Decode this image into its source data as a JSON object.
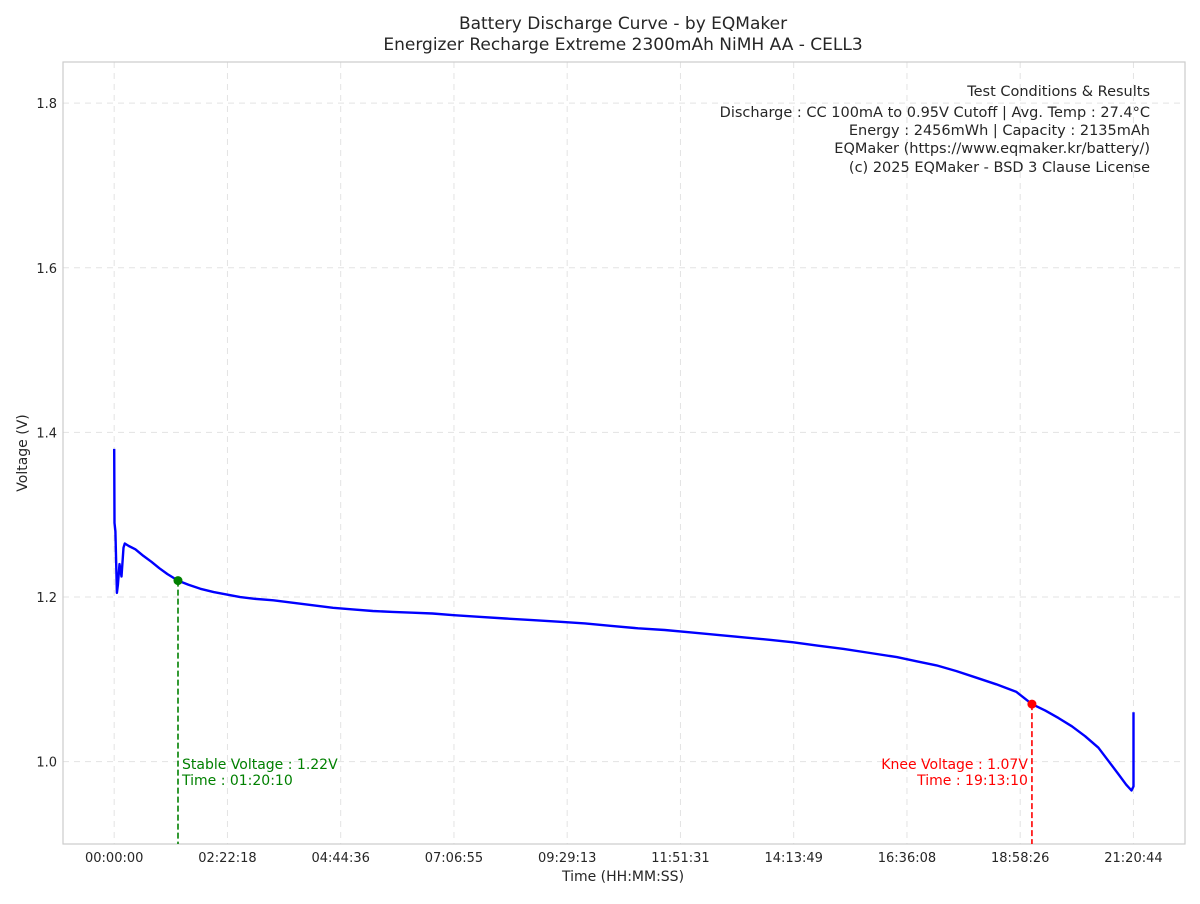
{
  "chart_data": {
    "type": "line",
    "title": "Battery Discharge Curve - by EQMaker",
    "subtitle": "Energizer Recharge Extreme 2300mAh NiMH AA - CELL3",
    "xlabel": "Time (HH:MM:SS)",
    "ylabel": "Voltage (V)",
    "x_unit": "seconds",
    "xlim": [
      -3860,
      80730
    ],
    "ylim": [
      0.9,
      1.85
    ],
    "x_ticks": [
      {
        "value": 0,
        "label": "00:00:00"
      },
      {
        "value": 8538,
        "label": "02:22:18"
      },
      {
        "value": 17076,
        "label": "04:44:36"
      },
      {
        "value": 25615,
        "label": "07:06:55"
      },
      {
        "value": 34153,
        "label": "09:29:13"
      },
      {
        "value": 42691,
        "label": "11:51:31"
      },
      {
        "value": 51229,
        "label": "14:13:49"
      },
      {
        "value": 59768,
        "label": "16:36:08"
      },
      {
        "value": 68306,
        "label": "18:58:26"
      },
      {
        "value": 76844,
        "label": "21:20:44"
      }
    ],
    "y_ticks": [
      1.0,
      1.2,
      1.4,
      1.6,
      1.8
    ],
    "grid": true,
    "series": [
      {
        "color": "#0000ff",
        "points": [
          [
            0,
            1.38
          ],
          [
            20,
            1.29
          ],
          [
            90,
            1.28
          ],
          [
            150,
            1.24
          ],
          [
            200,
            1.205
          ],
          [
            280,
            1.215
          ],
          [
            400,
            1.24
          ],
          [
            550,
            1.225
          ],
          [
            700,
            1.26
          ],
          [
            800,
            1.265
          ],
          [
            1100,
            1.262
          ],
          [
            1600,
            1.258
          ],
          [
            2200,
            1.25
          ],
          [
            2800,
            1.243
          ],
          [
            3400,
            1.235
          ],
          [
            4000,
            1.228
          ],
          [
            4810,
            1.22
          ],
          [
            5600,
            1.215
          ],
          [
            6500,
            1.21
          ],
          [
            7500,
            1.206
          ],
          [
            8500,
            1.203
          ],
          [
            9500,
            1.2
          ],
          [
            10500,
            1.198
          ],
          [
            12000,
            1.196
          ],
          [
            13500,
            1.193
          ],
          [
            15000,
            1.19
          ],
          [
            16500,
            1.187
          ],
          [
            18000,
            1.185
          ],
          [
            19500,
            1.183
          ],
          [
            21000,
            1.182
          ],
          [
            22500,
            1.181
          ],
          [
            24000,
            1.18
          ],
          [
            25600,
            1.178
          ],
          [
            27500,
            1.176
          ],
          [
            29500,
            1.174
          ],
          [
            31500,
            1.172
          ],
          [
            33500,
            1.17
          ],
          [
            35500,
            1.168
          ],
          [
            37500,
            1.165
          ],
          [
            39500,
            1.162
          ],
          [
            41500,
            1.16
          ],
          [
            43500,
            1.157
          ],
          [
            45500,
            1.154
          ],
          [
            47500,
            1.151
          ],
          [
            49500,
            1.148
          ],
          [
            51200,
            1.145
          ],
          [
            53000,
            1.141
          ],
          [
            55000,
            1.137
          ],
          [
            57000,
            1.132
          ],
          [
            59000,
            1.127
          ],
          [
            60500,
            1.122
          ],
          [
            62000,
            1.117
          ],
          [
            63500,
            1.11
          ],
          [
            65000,
            1.102
          ],
          [
            66500,
            1.094
          ],
          [
            68000,
            1.085
          ],
          [
            69190,
            1.07
          ],
          [
            70200,
            1.062
          ],
          [
            71200,
            1.053
          ],
          [
            72200,
            1.043
          ],
          [
            73200,
            1.031
          ],
          [
            74200,
            1.017
          ],
          [
            75000,
            1.0
          ],
          [
            75700,
            0.985
          ],
          [
            76300,
            0.972
          ],
          [
            76700,
            0.965
          ],
          [
            76844,
            0.97
          ],
          [
            76844,
            1.06
          ]
        ]
      }
    ],
    "annotations": [
      {
        "x": 4810,
        "y": 1.22,
        "color": "#008000",
        "line1": "Stable Voltage : 1.22V",
        "line2": "Time : 01:20:10"
      },
      {
        "x": 69190,
        "y": 1.07,
        "color": "#ff0000",
        "line1": "Knee Voltage : 1.07V",
        "line2": "Time : 19:13:10"
      }
    ],
    "info_box": {
      "title": "Test Conditions & Results",
      "lines": [
        "Discharge : CC 100mA to 0.95V Cutoff | Avg. Temp : 27.4°C",
        "Energy : 2456mWh | Capacity : 2135mAh",
        "EQMaker (https://www.eqmaker.kr/battery/)",
        "(c) 2025 EQMaker - BSD 3 Clause License"
      ]
    }
  }
}
